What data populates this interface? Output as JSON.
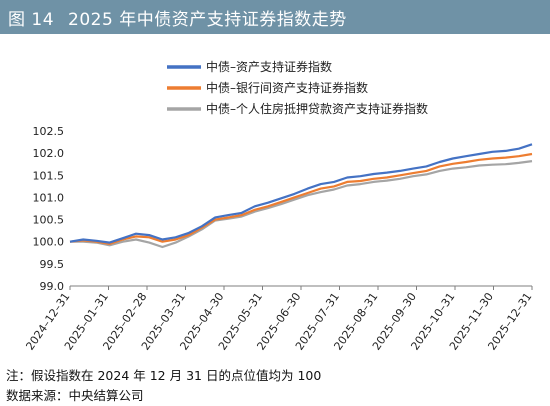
{
  "figure": {
    "number": "图 14",
    "title": "2025 年中债资产支持证券指数走势"
  },
  "notes": {
    "note": "注：假设指数在 2024 年 12 月 31 日的点位值均为 100",
    "source": "数据来源：中央结算公司"
  },
  "colors": {
    "title_bg": "#6f92a6",
    "series_1": "#4472c4",
    "series_2": "#ed7d31",
    "series_3": "#a5a5a5"
  },
  "chart_data": {
    "type": "line",
    "title": "2025 年中债资产支持证券指数走势",
    "xlabel": "",
    "ylabel": "",
    "ylim": [
      99.0,
      102.5
    ],
    "yticks": [
      "102.5",
      "102.0",
      "101.5",
      "101.0",
      "100.5",
      "100.0",
      "99.5",
      "99.0"
    ],
    "x_tick_labels": [
      "2024–12–31",
      "2025–01–31",
      "2025–02–28",
      "2025–03–31",
      "2025–04–30",
      "2025–05–31",
      "2025–06–30",
      "2025–07–31",
      "2025–08–31",
      "2025–09–30",
      "2025–10–31",
      "2025–11–30",
      "2025–12–31"
    ],
    "legend_position": "top-center",
    "grid": false,
    "series": [
      {
        "name": "中债–资产支持证券指数",
        "color": "#4472c4",
        "values": [
          100.0,
          100.05,
          100.02,
          99.98,
          100.08,
          100.18,
          100.15,
          100.05,
          100.1,
          100.2,
          100.35,
          100.55,
          100.6,
          100.65,
          100.8,
          100.88,
          100.98,
          101.08,
          101.2,
          101.3,
          101.35,
          101.45,
          101.48,
          101.53,
          101.56,
          101.6,
          101.65,
          101.7,
          101.8,
          101.88,
          101.93,
          101.98,
          102.03,
          102.05,
          102.1,
          102.2
        ]
      },
      {
        "name": "中债–银行间资产支持证券指数",
        "color": "#ed7d31",
        "values": [
          100.0,
          100.03,
          100.0,
          99.95,
          100.05,
          100.12,
          100.1,
          100.0,
          100.05,
          100.15,
          100.32,
          100.5,
          100.55,
          100.6,
          100.72,
          100.8,
          100.9,
          101.0,
          101.1,
          101.2,
          101.25,
          101.35,
          101.37,
          101.42,
          101.45,
          101.5,
          101.55,
          101.6,
          101.7,
          101.76,
          101.8,
          101.85,
          101.88,
          101.9,
          101.93,
          101.98
        ]
      },
      {
        "name": "中债–个人住房抵押贷款资产支持证券指数",
        "color": "#a5a5a5",
        "values": [
          100.0,
          100.0,
          99.98,
          99.92,
          100.0,
          100.05,
          99.98,
          99.88,
          99.98,
          100.12,
          100.28,
          100.48,
          100.52,
          100.57,
          100.68,
          100.76,
          100.85,
          100.95,
          101.05,
          101.12,
          101.18,
          101.27,
          101.3,
          101.35,
          101.38,
          101.42,
          101.48,
          101.52,
          101.6,
          101.65,
          101.68,
          101.72,
          101.74,
          101.75,
          101.78,
          101.82
        ]
      }
    ]
  }
}
